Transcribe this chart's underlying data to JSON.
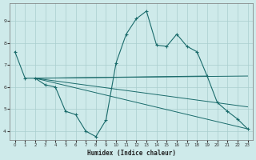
{
  "xlabel": "Humidex (Indice chaleur)",
  "background_color": "#ceeaea",
  "grid_color": "#aacece",
  "line_color": "#1a6b6b",
  "xlim": [
    -0.5,
    23.5
  ],
  "ylim": [
    3.6,
    9.8
  ],
  "yticks": [
    4,
    5,
    6,
    7,
    8,
    9
  ],
  "xticks": [
    0,
    1,
    2,
    3,
    4,
    5,
    6,
    7,
    8,
    9,
    10,
    11,
    12,
    13,
    14,
    15,
    16,
    17,
    18,
    19,
    20,
    21,
    22,
    23
  ],
  "main_line": {
    "x": [
      0,
      1,
      2,
      3,
      4,
      5,
      6,
      7,
      8,
      9,
      10,
      11,
      12,
      13,
      14,
      15,
      16,
      17,
      18,
      19,
      20,
      21,
      22,
      23
    ],
    "y": [
      7.6,
      6.4,
      6.4,
      6.1,
      6.0,
      4.9,
      4.75,
      4.0,
      3.75,
      4.5,
      7.1,
      8.4,
      9.1,
      9.45,
      7.9,
      7.85,
      8.4,
      7.85,
      7.6,
      6.5,
      5.3,
      4.9,
      4.55,
      4.1
    ]
  },
  "fan_lines": [
    {
      "x": [
        2,
        19
      ],
      "y": [
        6.4,
        6.5
      ]
    },
    {
      "x": [
        2,
        23
      ],
      "y": [
        6.4,
        6.5
      ]
    },
    {
      "x": [
        2,
        23
      ],
      "y": [
        6.4,
        5.1
      ]
    },
    {
      "x": [
        2,
        23
      ],
      "y": [
        6.4,
        4.1
      ]
    }
  ]
}
